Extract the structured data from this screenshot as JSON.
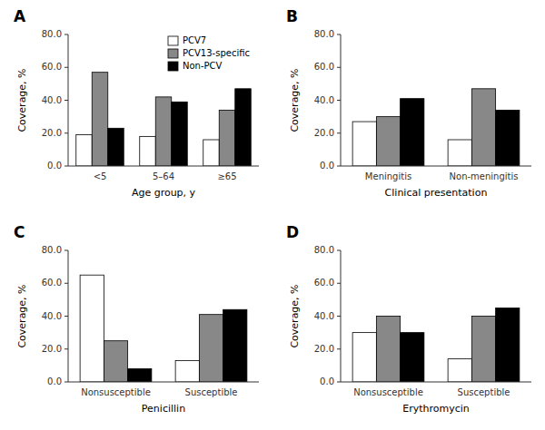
{
  "chart_data": [
    {
      "type": "bar",
      "title": "A",
      "categories": [
        "<5",
        "5–64",
        "≥65"
      ],
      "xlabel": "Age group, y",
      "ylabel": "Coverage, %",
      "ylim": [
        0,
        80
      ],
      "yticks": [
        {
          "value": 0,
          "label": "0.0"
        },
        {
          "value": 20,
          "label": "20.0"
        },
        {
          "value": 40,
          "label": "40.0"
        },
        {
          "value": 60,
          "label": "60.0"
        },
        {
          "value": 80,
          "label": "80.0"
        }
      ],
      "series": [
        {
          "name": "PCV7",
          "color": "#ffffff",
          "values": [
            19,
            18,
            16
          ]
        },
        {
          "name": "PCV13-specific",
          "color": "#888888",
          "values": [
            57,
            42,
            34
          ]
        },
        {
          "name": "Non-PCV",
          "color": "#000000",
          "values": [
            23,
            39,
            47
          ]
        }
      ],
      "legend": "upper right"
    },
    {
      "type": "bar",
      "title": "B",
      "categories": [
        "Meningitis",
        "Non-meningitis"
      ],
      "xlabel": "Clinical presentation",
      "ylabel": "Coverage, %",
      "ylim": [
        0,
        80
      ],
      "yticks": [
        {
          "value": 0,
          "label": "0.0"
        },
        {
          "value": 20,
          "label": "20.0"
        },
        {
          "value": 40,
          "label": "40.0"
        },
        {
          "value": 60,
          "label": "60.0"
        },
        {
          "value": 80,
          "label": "80.0"
        }
      ],
      "series": [
        {
          "name": "PCV7",
          "color": "#ffffff",
          "values": [
            27,
            16
          ]
        },
        {
          "name": "PCV13-specific",
          "color": "#888888",
          "values": [
            30,
            47
          ]
        },
        {
          "name": "Non-PCV",
          "color": "#000000",
          "values": [
            41,
            34
          ]
        }
      ]
    },
    {
      "type": "bar",
      "title": "C",
      "categories": [
        "Nonsusceptible",
        "Susceptible"
      ],
      "xlabel": "Penicillin",
      "ylabel": "Coverage, %",
      "ylim": [
        0,
        80
      ],
      "yticks": [
        {
          "value": 0,
          "label": "0.0"
        },
        {
          "value": 20,
          "label": "20.0"
        },
        {
          "value": 40,
          "label": "40.0"
        },
        {
          "value": 60,
          "label": "60.0"
        },
        {
          "value": 80,
          "label": "80.0"
        }
      ],
      "series": [
        {
          "name": "PCV7",
          "color": "#ffffff",
          "values": [
            65,
            13
          ]
        },
        {
          "name": "PCV13-specific",
          "color": "#888888",
          "values": [
            25,
            41
          ]
        },
        {
          "name": "Non-PCV",
          "color": "#000000",
          "values": [
            8,
            44
          ]
        }
      ]
    },
    {
      "type": "bar",
      "title": "D",
      "categories": [
        "Nonsusceptible",
        "Susceptible"
      ],
      "xlabel": "Erythromycin",
      "ylabel": "Coverage, %",
      "ylim": [
        0,
        80
      ],
      "yticks": [
        {
          "value": 0,
          "label": "0.0"
        },
        {
          "value": 20,
          "label": "20.0"
        },
        {
          "value": 40,
          "label": "40.0"
        },
        {
          "value": 60,
          "label": "60.0"
        },
        {
          "value": 80,
          "label": "80.0"
        }
      ],
      "series": [
        {
          "name": "PCV7",
          "color": "#ffffff",
          "values": [
            30,
            14
          ]
        },
        {
          "name": "PCV13-specific",
          "color": "#888888",
          "values": [
            40,
            40
          ]
        },
        {
          "name": "Non-PCV",
          "color": "#000000",
          "values": [
            30,
            45
          ]
        }
      ]
    }
  ]
}
